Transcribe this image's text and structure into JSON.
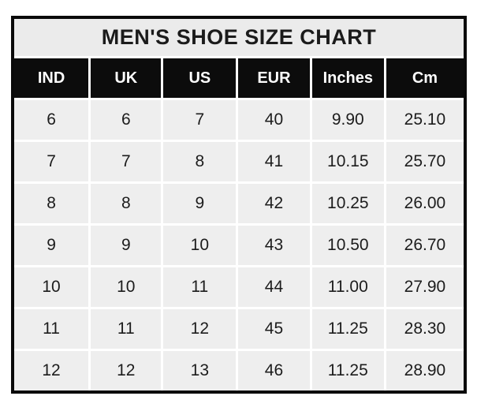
{
  "chart_data": {
    "type": "table",
    "title": "MEN'S SHOE SIZE CHART",
    "columns": [
      "IND",
      "UK",
      "US",
      "EUR",
      "Inches",
      "Cm"
    ],
    "rows": [
      [
        "6",
        "6",
        "7",
        "40",
        "9.90",
        "25.10"
      ],
      [
        "7",
        "7",
        "8",
        "41",
        "10.15",
        "25.70"
      ],
      [
        "8",
        "8",
        "9",
        "42",
        "10.25",
        "26.00"
      ],
      [
        "9",
        "9",
        "10",
        "43",
        "10.50",
        "26.70"
      ],
      [
        "10",
        "10",
        "11",
        "44",
        "11.00",
        "27.90"
      ],
      [
        "11",
        "11",
        "12",
        "45",
        "11.25",
        "28.30"
      ],
      [
        "12",
        "12",
        "13",
        "46",
        "11.25",
        "28.90"
      ]
    ]
  },
  "colors": {
    "outer_border": "#0a0a0a",
    "header_bg": "#0c0c0c",
    "header_text": "#fdfdfd",
    "title_bg": "#ebebeb",
    "cell_bg": "#eeeeee",
    "grid_lines": "#ffffff",
    "text": "#1c1c1c"
  }
}
